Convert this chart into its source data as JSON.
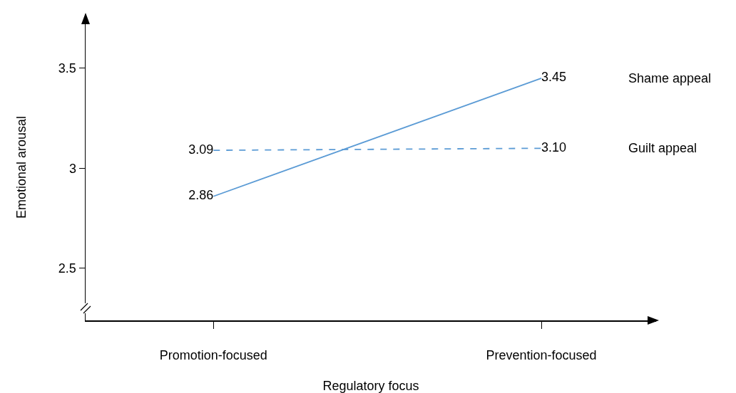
{
  "chart_data": {
    "type": "line",
    "xlabel": "Regulatory focus",
    "ylabel": "Emotional arousal",
    "categories": [
      "Promotion-focused",
      "Prevention-focused"
    ],
    "series": [
      {
        "name": "Shame appeal",
        "color": "#5b9bd5",
        "line_style": "solid",
        "values": [
          2.86,
          3.45
        ],
        "value_labels": [
          "2.86",
          "3.45"
        ]
      },
      {
        "name": "Guilt appeal",
        "color": "#5b9bd5",
        "line_style": "dashed",
        "values": [
          3.09,
          3.1
        ],
        "value_labels": [
          "3.09",
          "3.10"
        ]
      }
    ],
    "ylim": [
      2.24,
      3.77
    ],
    "yticks": [
      2.5,
      3,
      3.5
    ],
    "grid": false,
    "legend": false,
    "marker": "none"
  }
}
